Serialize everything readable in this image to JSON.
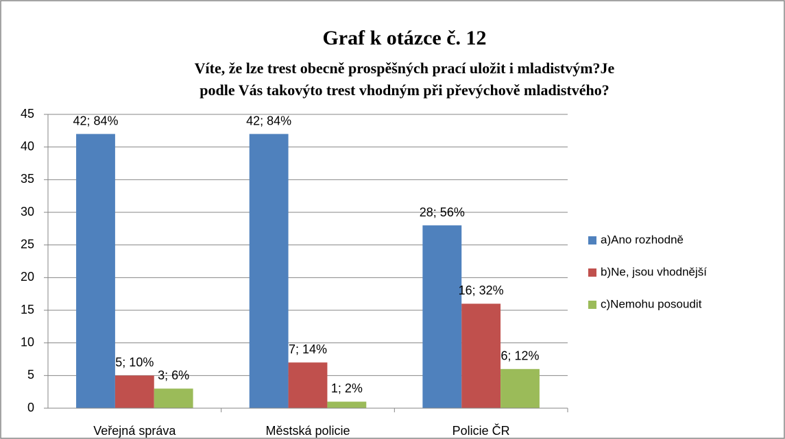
{
  "chart_data": {
    "type": "bar",
    "title": "Graf k otázce č. 12",
    "subtitle": [
      "Víte, že lze trest obecně prospěšných prací uložit i mladistvým?Je",
      "podle Vás takovýto trest vhodným při převýchově mladistvého?"
    ],
    "categories": [
      "Veřejná správa",
      "Městská policie",
      "Policie ČR"
    ],
    "series": [
      {
        "name": "a)Ano rozhodně",
        "color": "#4f81bd",
        "values": [
          42,
          42,
          28
        ],
        "value_labels": [
          "42; 84%",
          "42; 84%",
          "28; 56%"
        ]
      },
      {
        "name": "b)Ne, jsou vhodnější",
        "color": "#c0504d",
        "values": [
          5,
          7,
          16
        ],
        "value_labels": [
          "5; 10%",
          "7; 14%",
          "16; 32%"
        ]
      },
      {
        "name": "c)Nemohu posoudit",
        "color": "#9bbb59",
        "values": [
          3,
          1,
          6
        ],
        "value_labels": [
          "3; 6%",
          "1; 2%",
          "6; 12%"
        ]
      }
    ],
    "ylim": [
      0,
      45
    ],
    "yticks": [
      0,
      5,
      10,
      15,
      20,
      25,
      30,
      35,
      40,
      45
    ],
    "grid": true,
    "legend": "right"
  }
}
